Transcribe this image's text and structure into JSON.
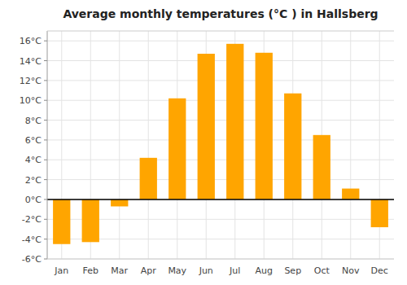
{
  "chart_data": {
    "type": "bar",
    "title": "Average monthly temperatures (°C ) in Hallsberg",
    "categories": [
      "Jan",
      "Feb",
      "Mar",
      "Apr",
      "May",
      "Jun",
      "Jul",
      "Aug",
      "Sep",
      "Oct",
      "Nov",
      "Dec"
    ],
    "values": [
      -4.5,
      -4.3,
      -0.7,
      4.2,
      10.2,
      14.7,
      15.7,
      14.8,
      10.7,
      6.5,
      1.1,
      -2.8
    ],
    "color": "#FFA500",
    "ylim": [
      -6,
      17
    ],
    "yticks": [
      {
        "value": -6,
        "label": "-6°C"
      },
      {
        "value": -4,
        "label": "-4°C"
      },
      {
        "value": -2,
        "label": "-2°C"
      },
      {
        "value": 0,
        "label": "0°C"
      },
      {
        "value": 2,
        "label": "2°C"
      },
      {
        "value": 4,
        "label": "4°C"
      },
      {
        "value": 6,
        "label": "6°C"
      },
      {
        "value": 8,
        "label": "8°C"
      },
      {
        "value": 10,
        "label": "10°C"
      },
      {
        "value": 12,
        "label": "12°C"
      },
      {
        "value": 14,
        "label": "14°C"
      },
      {
        "value": 16,
        "label": "16°C"
      }
    ],
    "grid": true
  }
}
